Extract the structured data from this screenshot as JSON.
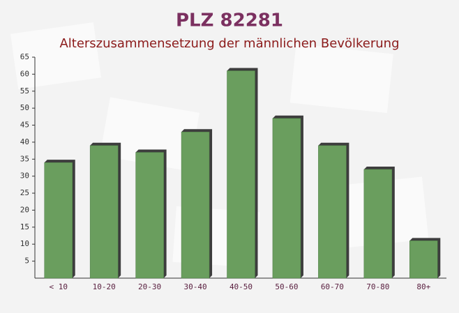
{
  "chart_data": {
    "type": "bar",
    "title": "PLZ 82281",
    "subtitle": "Alterszusammensetzung der männlichen Bevölkerung",
    "categories": [
      "< 10",
      "10-20",
      "20-30",
      "30-40",
      "40-50",
      "50-60",
      "60-70",
      "70-80",
      "80+"
    ],
    "values": [
      34,
      39,
      37,
      43,
      61,
      47,
      39,
      32,
      11
    ],
    "color": "#6a9e5e",
    "ylim": [
      0,
      65
    ],
    "yticks": [
      5,
      10,
      15,
      20,
      25,
      30,
      35,
      40,
      45,
      50,
      55,
      60,
      65
    ],
    "grid": false
  }
}
